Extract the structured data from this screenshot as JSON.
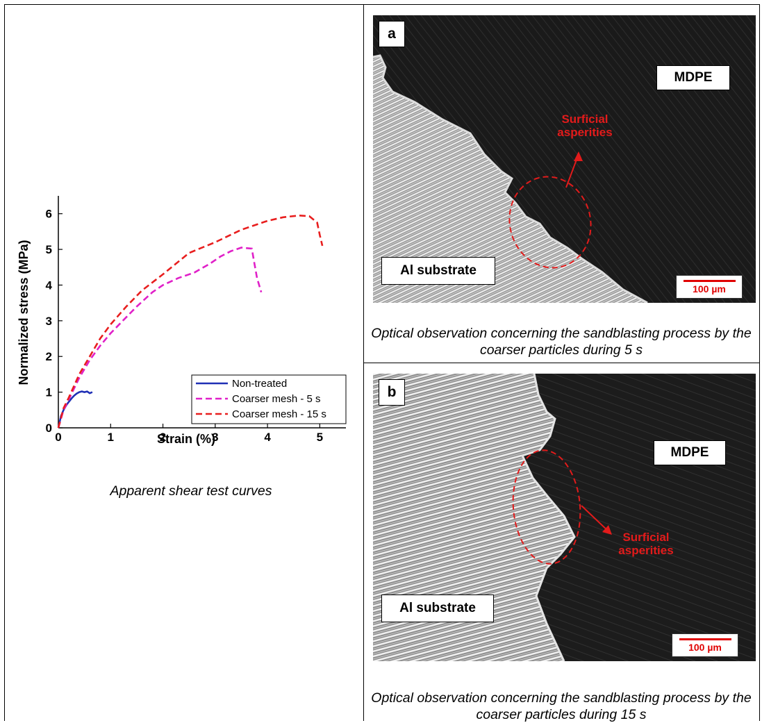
{
  "chart_data": {
    "type": "line",
    "title": "",
    "xlabel": "Strain (%)",
    "ylabel": "Normalized stress (MPa)",
    "xlim": [
      0,
      5.5
    ],
    "ylim": [
      0,
      6.5
    ],
    "x_ticks": [
      "0",
      "1",
      "2",
      "3",
      "4",
      "5"
    ],
    "y_ticks": [
      "0",
      "1",
      "2",
      "3",
      "4",
      "5",
      "6"
    ],
    "legend_position": "bottom-right",
    "grid": false,
    "series": [
      {
        "name": "Non-treated",
        "color": "#1f2fb5",
        "dash": "solid",
        "x": [
          0,
          0.05,
          0.1,
          0.15,
          0.2,
          0.25,
          0.3,
          0.35,
          0.4,
          0.45,
          0.5,
          0.55,
          0.6,
          0.65
        ],
        "y": [
          0,
          0.33,
          0.5,
          0.63,
          0.73,
          0.82,
          0.9,
          0.96,
          1.0,
          1.02,
          1.0,
          1.02,
          0.97,
          1.0
        ]
      },
      {
        "name": "Coarser mesh - 5 s",
        "color": "#e020c8",
        "dash": "dashed",
        "x": [
          0,
          0.1,
          0.2,
          0.4,
          0.6,
          0.8,
          1.0,
          1.2,
          1.5,
          1.8,
          2.0,
          2.3,
          2.6,
          2.9,
          3.1,
          3.3,
          3.5,
          3.7,
          3.75,
          3.8,
          3.88
        ],
        "y": [
          0,
          0.5,
          0.8,
          1.4,
          1.9,
          2.3,
          2.65,
          2.95,
          3.4,
          3.8,
          4.0,
          4.2,
          4.35,
          4.6,
          4.8,
          4.95,
          5.05,
          5.02,
          4.6,
          4.2,
          3.8
        ]
      },
      {
        "name": "Coarser mesh - 15 s",
        "color": "#e81e1e",
        "dash": "dashed",
        "x": [
          0,
          0.1,
          0.2,
          0.4,
          0.6,
          0.8,
          1.0,
          1.3,
          1.6,
          2.0,
          2.5,
          3.0,
          3.5,
          4.0,
          4.3,
          4.6,
          4.8,
          4.95,
          5.0,
          5.05
        ],
        "y": [
          0,
          0.55,
          0.85,
          1.5,
          2.0,
          2.5,
          2.9,
          3.4,
          3.85,
          4.3,
          4.9,
          5.2,
          5.55,
          5.8,
          5.9,
          5.95,
          5.93,
          5.75,
          5.4,
          5.1
        ]
      }
    ]
  },
  "captions": {
    "chart": "Apparent shear test curves",
    "panel_a": "Optical observation concerning the sandblasting process by the coarser particles during 5 s",
    "panel_b": "Optical observation concerning the sandblasting process by the coarser particles during 15 s"
  },
  "panels": {
    "a": {
      "letter": "a",
      "polymer_label": "MDPE",
      "substrate_label": "Al substrate",
      "annotation": "Surficial asperities",
      "scale_bar": "100 µm"
    },
    "b": {
      "letter": "b",
      "polymer_label": "MDPE",
      "substrate_label": "Al substrate",
      "annotation": "Surficial asperities",
      "scale_bar": "100 µm"
    }
  }
}
